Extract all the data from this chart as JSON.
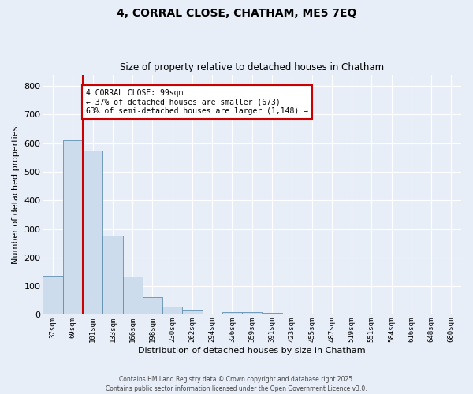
{
  "title": "4, CORRAL CLOSE, CHATHAM, ME5 7EQ",
  "subtitle": "Size of property relative to detached houses in Chatham",
  "xlabel": "Distribution of detached houses by size in Chatham",
  "ylabel": "Number of detached properties",
  "bar_color": "#ccdcec",
  "bar_edge_color": "#6090b0",
  "background_color": "#e8eef8",
  "grid_color": "#ffffff",
  "annotation_box_color": "#ffffff",
  "annotation_border_color": "#cc0000",
  "vline_color": "#cc0000",
  "categories": [
    "37sqm",
    "69sqm",
    "101sqm",
    "133sqm",
    "166sqm",
    "198sqm",
    "230sqm",
    "262sqm",
    "294sqm",
    "326sqm",
    "359sqm",
    "391sqm",
    "423sqm",
    "455sqm",
    "487sqm",
    "519sqm",
    "551sqm",
    "584sqm",
    "616sqm",
    "648sqm",
    "680sqm"
  ],
  "values": [
    135,
    610,
    575,
    278,
    133,
    62,
    28,
    15,
    5,
    10,
    10,
    6,
    0,
    0,
    5,
    0,
    0,
    0,
    0,
    0,
    5
  ],
  "vline_x_index": 2,
  "annotation_text": "4 CORRAL CLOSE: 99sqm\n← 37% of detached houses are smaller (673)\n63% of semi-detached houses are larger (1,148) →",
  "ylim": [
    0,
    840
  ],
  "yticks": [
    0,
    100,
    200,
    300,
    400,
    500,
    600,
    700,
    800
  ],
  "footnote_line1": "Contains HM Land Registry data © Crown copyright and database right 2025.",
  "footnote_line2": "Contains public sector information licensed under the Open Government Licence v3.0."
}
